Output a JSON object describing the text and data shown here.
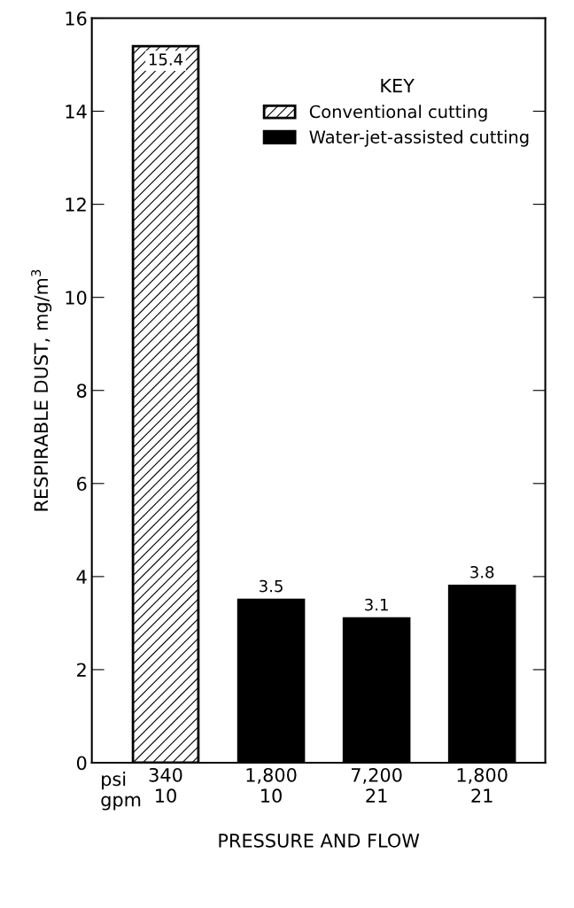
{
  "chart_data": {
    "type": "bar",
    "xlabel": "PRESSURE AND FLOW",
    "ylabel": "RESPIRABLE DUST, mg/m$^{3}$",
    "categories": [
      "340\n10",
      "1,800\n10",
      "7,200\n21",
      "1,800\n21"
    ],
    "series": [
      {
        "name": "Conventional cutting",
        "color": "#000000",
        "values": [
          15.4,
          null,
          null,
          null
        ]
      },
      {
        "name": "Water-jet-assisted cutting",
        "color": "#000000",
        "values": [
          null,
          3.5,
          3.1,
          3.8
        ]
      }
    ],
    "legend_title": "KEY",
    "legend": "top right",
    "data_labels": true,
    "ylim": [
      0,
      16
    ],
    "yticks": [
      0,
      2,
      4,
      6,
      8,
      10,
      12,
      14,
      16
    ],
    "grid": false,
    "annotations": [
      "psi\ngpm"
    ]
  }
}
